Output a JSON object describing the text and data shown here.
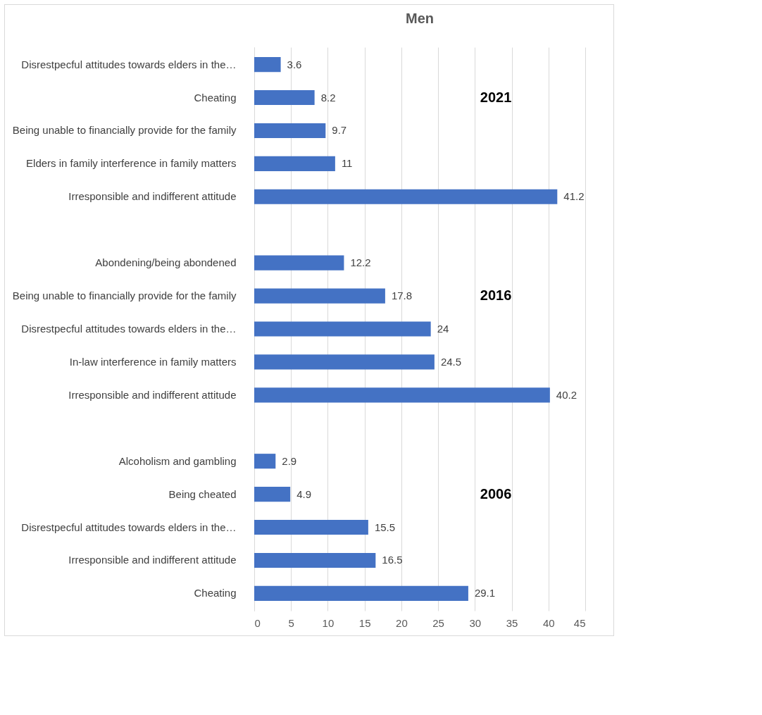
{
  "chart_data": {
    "type": "bar",
    "orientation": "horizontal",
    "title": "Men",
    "categories": [
      "Disrestpecful attitudes towards elders in the…",
      "Cheating",
      "Being unable to financially provide for the family",
      "Elders in family interference in family matters",
      "Irresponsible and indifferent attitude",
      null,
      "Abondening/being abondened",
      "Being unable to financially provide for the family",
      "Disrestpecful attitudes towards elders in the…",
      "In-law interference in family matters",
      "Irresponsible and indifferent attitude",
      null,
      "Alcoholism and gambling",
      "Being cheated",
      "Disrestpecful attitudes towards elders in the…",
      "Irresponsible and indifferent attitude",
      "Cheating"
    ],
    "values": [
      3.6,
      8.2,
      9.7,
      11,
      41.2,
      null,
      12.2,
      17.8,
      24,
      24.5,
      40.2,
      null,
      2.9,
      4.9,
      15.5,
      16.5,
      29.1
    ],
    "color": "#4472c4",
    "xlim": [
      0,
      45
    ],
    "xticks": [
      0,
      5,
      10,
      15,
      20,
      25,
      30,
      35,
      40,
      45
    ],
    "grid": "x",
    "data_labels": true,
    "annotations": [
      "2021",
      "2016",
      "2006"
    ]
  }
}
